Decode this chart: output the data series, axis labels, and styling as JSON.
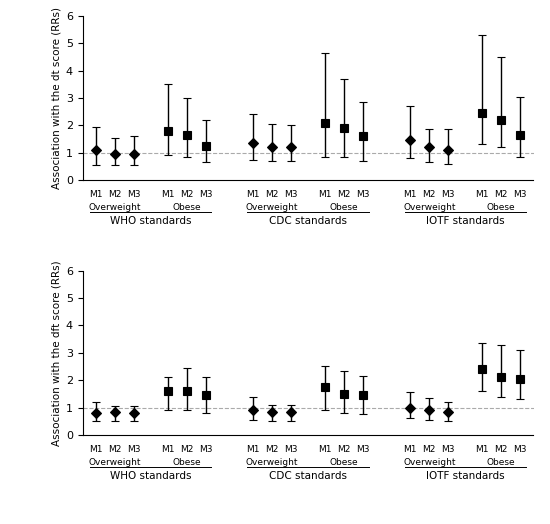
{
  "panel1": {
    "ylabel": "Association with the dt score (RRs)",
    "ylim": [
      0,
      6
    ],
    "yticks": [
      0,
      1,
      2,
      3,
      4,
      5,
      6
    ],
    "groups": [
      {
        "label": "WHO standards",
        "subgroups": [
          {
            "name": "Overweight",
            "models": [
              "M1",
              "M2",
              "M3"
            ],
            "values": [
              1.1,
              0.95,
              0.95
            ],
            "lower": [
              0.55,
              0.55,
              0.55
            ],
            "upper": [
              1.95,
              1.55,
              1.6
            ],
            "markers": [
              "diamond",
              "diamond",
              "diamond"
            ]
          },
          {
            "name": "Obese",
            "models": [
              "M1",
              "M2",
              "M3"
            ],
            "values": [
              1.8,
              1.65,
              1.25
            ],
            "lower": [
              0.9,
              0.85,
              0.65
            ],
            "upper": [
              3.5,
              3.0,
              2.2
            ],
            "markers": [
              "square",
              "square",
              "square"
            ]
          }
        ]
      },
      {
        "label": "CDC standards",
        "subgroups": [
          {
            "name": "Overweight",
            "models": [
              "M1",
              "M2",
              "M3"
            ],
            "values": [
              1.35,
              1.2,
              1.2
            ],
            "lower": [
              0.75,
              0.7,
              0.7
            ],
            "upper": [
              2.4,
              2.05,
              2.0
            ],
            "markers": [
              "diamond",
              "diamond",
              "diamond"
            ]
          },
          {
            "name": "Obese",
            "models": [
              "M1",
              "M2",
              "M3"
            ],
            "values": [
              2.1,
              1.9,
              1.6
            ],
            "lower": [
              0.85,
              0.85,
              0.7
            ],
            "upper": [
              4.65,
              3.7,
              2.85
            ],
            "markers": [
              "square",
              "square",
              "square"
            ]
          }
        ]
      },
      {
        "label": "IOTF standards",
        "subgroups": [
          {
            "name": "Overweight",
            "models": [
              "M1",
              "M2",
              "M3"
            ],
            "values": [
              1.45,
              1.2,
              1.1
            ],
            "lower": [
              0.8,
              0.65,
              0.6
            ],
            "upper": [
              2.7,
              1.85,
              1.85
            ],
            "markers": [
              "diamond",
              "diamond",
              "diamond"
            ]
          },
          {
            "name": "Obese",
            "models": [
              "M1",
              "M2",
              "M3"
            ],
            "values": [
              2.45,
              2.2,
              1.65
            ],
            "lower": [
              1.3,
              1.2,
              0.85
            ],
            "upper": [
              5.3,
              4.5,
              3.05
            ],
            "markers": [
              "square",
              "square",
              "square"
            ]
          }
        ]
      }
    ]
  },
  "panel2": {
    "ylabel": "Association with the dft score (RRs)",
    "ylim": [
      0,
      6
    ],
    "yticks": [
      0,
      1,
      2,
      3,
      4,
      5,
      6
    ],
    "groups": [
      {
        "label": "WHO standards",
        "subgroups": [
          {
            "name": "Overweight",
            "models": [
              "M1",
              "M2",
              "M3"
            ],
            "values": [
              0.8,
              0.82,
              0.8
            ],
            "lower": [
              0.5,
              0.5,
              0.5
            ],
            "upper": [
              1.2,
              1.05,
              1.05
            ],
            "markers": [
              "diamond",
              "diamond",
              "diamond"
            ]
          },
          {
            "name": "Obese",
            "models": [
              "M1",
              "M2",
              "M3"
            ],
            "values": [
              1.6,
              1.6,
              1.45
            ],
            "lower": [
              0.9,
              0.9,
              0.8
            ],
            "upper": [
              2.1,
              2.45,
              2.1
            ],
            "markers": [
              "square",
              "square",
              "square"
            ]
          }
        ]
      },
      {
        "label": "CDC standards",
        "subgroups": [
          {
            "name": "Overweight",
            "models": [
              "M1",
              "M2",
              "M3"
            ],
            "values": [
              0.92,
              0.82,
              0.82
            ],
            "lower": [
              0.55,
              0.5,
              0.5
            ],
            "upper": [
              1.4,
              1.1,
              1.1
            ],
            "markers": [
              "diamond",
              "diamond",
              "diamond"
            ]
          },
          {
            "name": "Obese",
            "models": [
              "M1",
              "M2",
              "M3"
            ],
            "values": [
              1.75,
              1.5,
              1.45
            ],
            "lower": [
              0.9,
              0.8,
              0.75
            ],
            "upper": [
              2.5,
              2.35,
              2.15
            ],
            "markers": [
              "square",
              "square",
              "square"
            ]
          }
        ]
      },
      {
        "label": "IOTF standards",
        "subgroups": [
          {
            "name": "Overweight",
            "models": [
              "M1",
              "M2",
              "M3"
            ],
            "values": [
              0.98,
              0.92,
              0.82
            ],
            "lower": [
              0.6,
              0.55,
              0.5
            ],
            "upper": [
              1.55,
              1.35,
              1.2
            ],
            "markers": [
              "diamond",
              "diamond",
              "diamond"
            ]
          },
          {
            "name": "Obese",
            "models": [
              "M1",
              "M2",
              "M3"
            ],
            "values": [
              2.4,
              2.1,
              2.05
            ],
            "lower": [
              1.6,
              1.4,
              1.3
            ],
            "upper": [
              3.35,
              3.3,
              3.1
            ],
            "markers": [
              "square",
              "square",
              "square"
            ]
          }
        ]
      }
    ]
  },
  "color": "#000000",
  "bg_color": "#ffffff",
  "grid_color": "#aaaaaa",
  "capsize": 3,
  "markersize": 6,
  "linewidth": 1.0
}
